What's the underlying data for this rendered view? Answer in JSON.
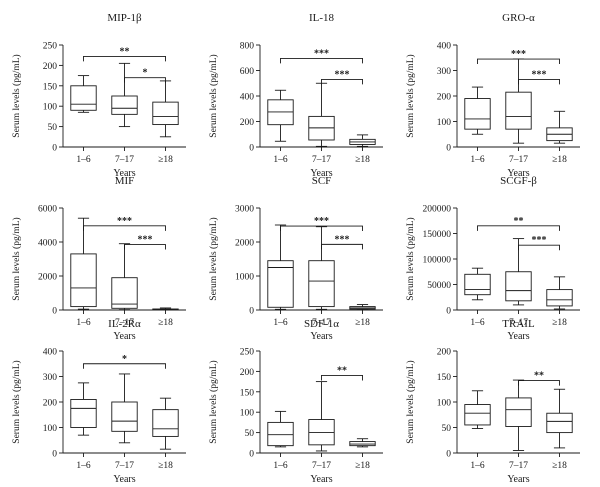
{
  "chart_data": [
    {
      "type": "box",
      "title": "MIP-1β",
      "xlabel": "Years",
      "ylabel": "Serum levels (pg/mL)",
      "ylim": [
        0,
        250
      ],
      "yticks": [
        "0",
        "50",
        "100",
        "150",
        "200",
        "250"
      ],
      "categories": [
        "1–6",
        "7–17",
        "≥18"
      ],
      "boxes": [
        {
          "min": 85,
          "q1": 90,
          "median": 105,
          "q3": 150,
          "max": 175
        },
        {
          "min": 50,
          "q1": 80,
          "median": 95,
          "q3": 125,
          "max": 205
        },
        {
          "min": 25,
          "q1": 55,
          "median": 75,
          "q3": 110,
          "max": 162
        }
      ],
      "significance": [
        {
          "from": 0,
          "to": 2,
          "label": "**",
          "level": 222
        },
        {
          "from": 1,
          "to": 2,
          "label": "*",
          "level": 170
        }
      ]
    },
    {
      "type": "box",
      "title": "IL-18",
      "xlabel": "Years",
      "ylabel": "Serum levels (pg/mL)",
      "ylim": [
        0,
        800
      ],
      "yticks": [
        "0",
        "200",
        "400",
        "600",
        "800"
      ],
      "categories": [
        "1–6",
        "7–17",
        "≥18"
      ],
      "boxes": [
        {
          "min": 45,
          "q1": 175,
          "median": 275,
          "q3": 370,
          "max": 445
        },
        {
          "min": 5,
          "q1": 55,
          "median": 150,
          "q3": 240,
          "max": 500
        },
        {
          "min": 5,
          "q1": 20,
          "median": 40,
          "q3": 60,
          "max": 95
        }
      ],
      "significance": [
        {
          "from": 0,
          "to": 2,
          "label": "***",
          "level": 695
        },
        {
          "from": 1,
          "to": 2,
          "label": "***",
          "level": 530
        }
      ]
    },
    {
      "type": "box",
      "title": "GRO-α",
      "xlabel": "Years",
      "ylabel": "Serum levels (pg/mL)",
      "ylim": [
        0,
        400
      ],
      "yticks": [
        "0",
        "100",
        "200",
        "300",
        "400"
      ],
      "categories": [
        "1–6",
        "7–17",
        "≥18"
      ],
      "boxes": [
        {
          "min": 50,
          "q1": 70,
          "median": 110,
          "q3": 190,
          "max": 235
        },
        {
          "min": 15,
          "q1": 70,
          "median": 120,
          "q3": 215,
          "max": 345
        },
        {
          "min": 15,
          "q1": 25,
          "median": 50,
          "q3": 75,
          "max": 140
        }
      ],
      "significance": [
        {
          "from": 0,
          "to": 2,
          "label": "***",
          "level": 345
        },
        {
          "from": 1,
          "to": 2,
          "label": "***",
          "level": 265
        }
      ]
    },
    {
      "type": "box",
      "title": "MIF",
      "xlabel": "Years",
      "ylabel": "Serum levels (pg/mL)",
      "ylim": [
        0,
        6000
      ],
      "yticks": [
        "0",
        "2000",
        "4000",
        "6000"
      ],
      "categories": [
        "1–6",
        "7–17",
        "≥18"
      ],
      "boxes": [
        {
          "min": 50,
          "q1": 200,
          "median": 1300,
          "q3": 3300,
          "max": 5400
        },
        {
          "min": 20,
          "q1": 100,
          "median": 350,
          "q3": 1900,
          "max": 3900
        },
        {
          "min": 0,
          "q1": 10,
          "median": 30,
          "q3": 60,
          "max": 120
        }
      ],
      "significance": [
        {
          "from": 0,
          "to": 2,
          "label": "***",
          "level": 4950
        },
        {
          "from": 1,
          "to": 2,
          "label": "***",
          "level": 3850
        }
      ]
    },
    {
      "type": "box",
      "title": "SCF",
      "xlabel": "Years",
      "ylabel": "Serum levels (pg/mL)",
      "ylim": [
        0,
        3000
      ],
      "yticks": [
        "0",
        "1000",
        "2000",
        "3000"
      ],
      "categories": [
        "1–6",
        "7–17",
        "≥18"
      ],
      "boxes": [
        {
          "min": 20,
          "q1": 80,
          "median": 1250,
          "q3": 1450,
          "max": 2500
        },
        {
          "min": 20,
          "q1": 100,
          "median": 850,
          "q3": 1450,
          "max": 2450
        },
        {
          "min": 10,
          "q1": 30,
          "median": 60,
          "q3": 100,
          "max": 160
        }
      ],
      "significance": [
        {
          "from": 0,
          "to": 2,
          "label": "***",
          "level": 2470
        },
        {
          "from": 1,
          "to": 2,
          "label": "***",
          "level": 1930
        }
      ]
    },
    {
      "type": "box",
      "title": "SCGF-β",
      "xlabel": "Years",
      "ylabel": "Serum levels (pg/mL)",
      "ylim": [
        0,
        200000
      ],
      "yticks": [
        "0",
        "50000",
        "100000",
        "150000",
        "200000"
      ],
      "categories": [
        "1–6",
        "7–17",
        "≥18"
      ],
      "boxes": [
        {
          "min": 20000,
          "q1": 30000,
          "median": 40000,
          "q3": 70000,
          "max": 82000
        },
        {
          "min": 10000,
          "q1": 18000,
          "median": 38000,
          "q3": 75000,
          "max": 140000
        },
        {
          "min": 2000,
          "q1": 8000,
          "median": 20000,
          "q3": 40000,
          "max": 65000
        }
      ],
      "significance": [
        {
          "from": 0,
          "to": 2,
          "label": "**",
          "level": 165000
        },
        {
          "from": 1,
          "to": 2,
          "label": "***",
          "level": 127000
        }
      ]
    },
    {
      "type": "box",
      "title": "IL-2Rα",
      "xlabel": "Years",
      "ylabel": "Serum levels (pg/mL)",
      "ylim": [
        0,
        400
      ],
      "yticks": [
        "0",
        "100",
        "200",
        "300",
        "400"
      ],
      "categories": [
        "1–6",
        "7–17",
        "≥18"
      ],
      "boxes": [
        {
          "min": 70,
          "q1": 100,
          "median": 175,
          "q3": 210,
          "max": 275
        },
        {
          "min": 40,
          "q1": 85,
          "median": 125,
          "q3": 200,
          "max": 310
        },
        {
          "min": 15,
          "q1": 65,
          "median": 95,
          "q3": 170,
          "max": 215
        }
      ],
      "significance": [
        {
          "from": 0,
          "to": 2,
          "label": "*",
          "level": 350
        }
      ]
    },
    {
      "type": "box",
      "title": "SDF-1α",
      "xlabel": "Years",
      "ylabel": "Serum levels (pg/mL)",
      "ylim": [
        0,
        250
      ],
      "yticks": [
        "0",
        "50",
        "100",
        "150",
        "200",
        "250"
      ],
      "categories": [
        "1–6",
        "7–17",
        "≥18"
      ],
      "boxes": [
        {
          "min": 15,
          "q1": 18,
          "median": 45,
          "q3": 75,
          "max": 102
        },
        {
          "min": 5,
          "q1": 20,
          "median": 50,
          "q3": 82,
          "max": 175
        },
        {
          "min": 15,
          "q1": 18,
          "median": 22,
          "q3": 28,
          "max": 35
        }
      ],
      "significance": [
        {
          "from": 1,
          "to": 2,
          "label": "**",
          "level": 190
        }
      ]
    },
    {
      "type": "box",
      "title": "TRAIL",
      "xlabel": "Years",
      "ylabel": "Serum levels (pg/mL)",
      "ylim": [
        0,
        200
      ],
      "yticks": [
        "0",
        "50",
        "100",
        "150",
        "200"
      ],
      "categories": [
        "1–6",
        "7–17",
        "≥18"
      ],
      "boxes": [
        {
          "min": 48,
          "q1": 55,
          "median": 78,
          "q3": 95,
          "max": 122
        },
        {
          "min": 5,
          "q1": 52,
          "median": 85,
          "q3": 108,
          "max": 143
        },
        {
          "min": 10,
          "q1": 40,
          "median": 62,
          "q3": 78,
          "max": 125
        }
      ],
      "significance": [
        {
          "from": 1,
          "to": 2,
          "label": "**",
          "level": 142
        }
      ]
    }
  ]
}
